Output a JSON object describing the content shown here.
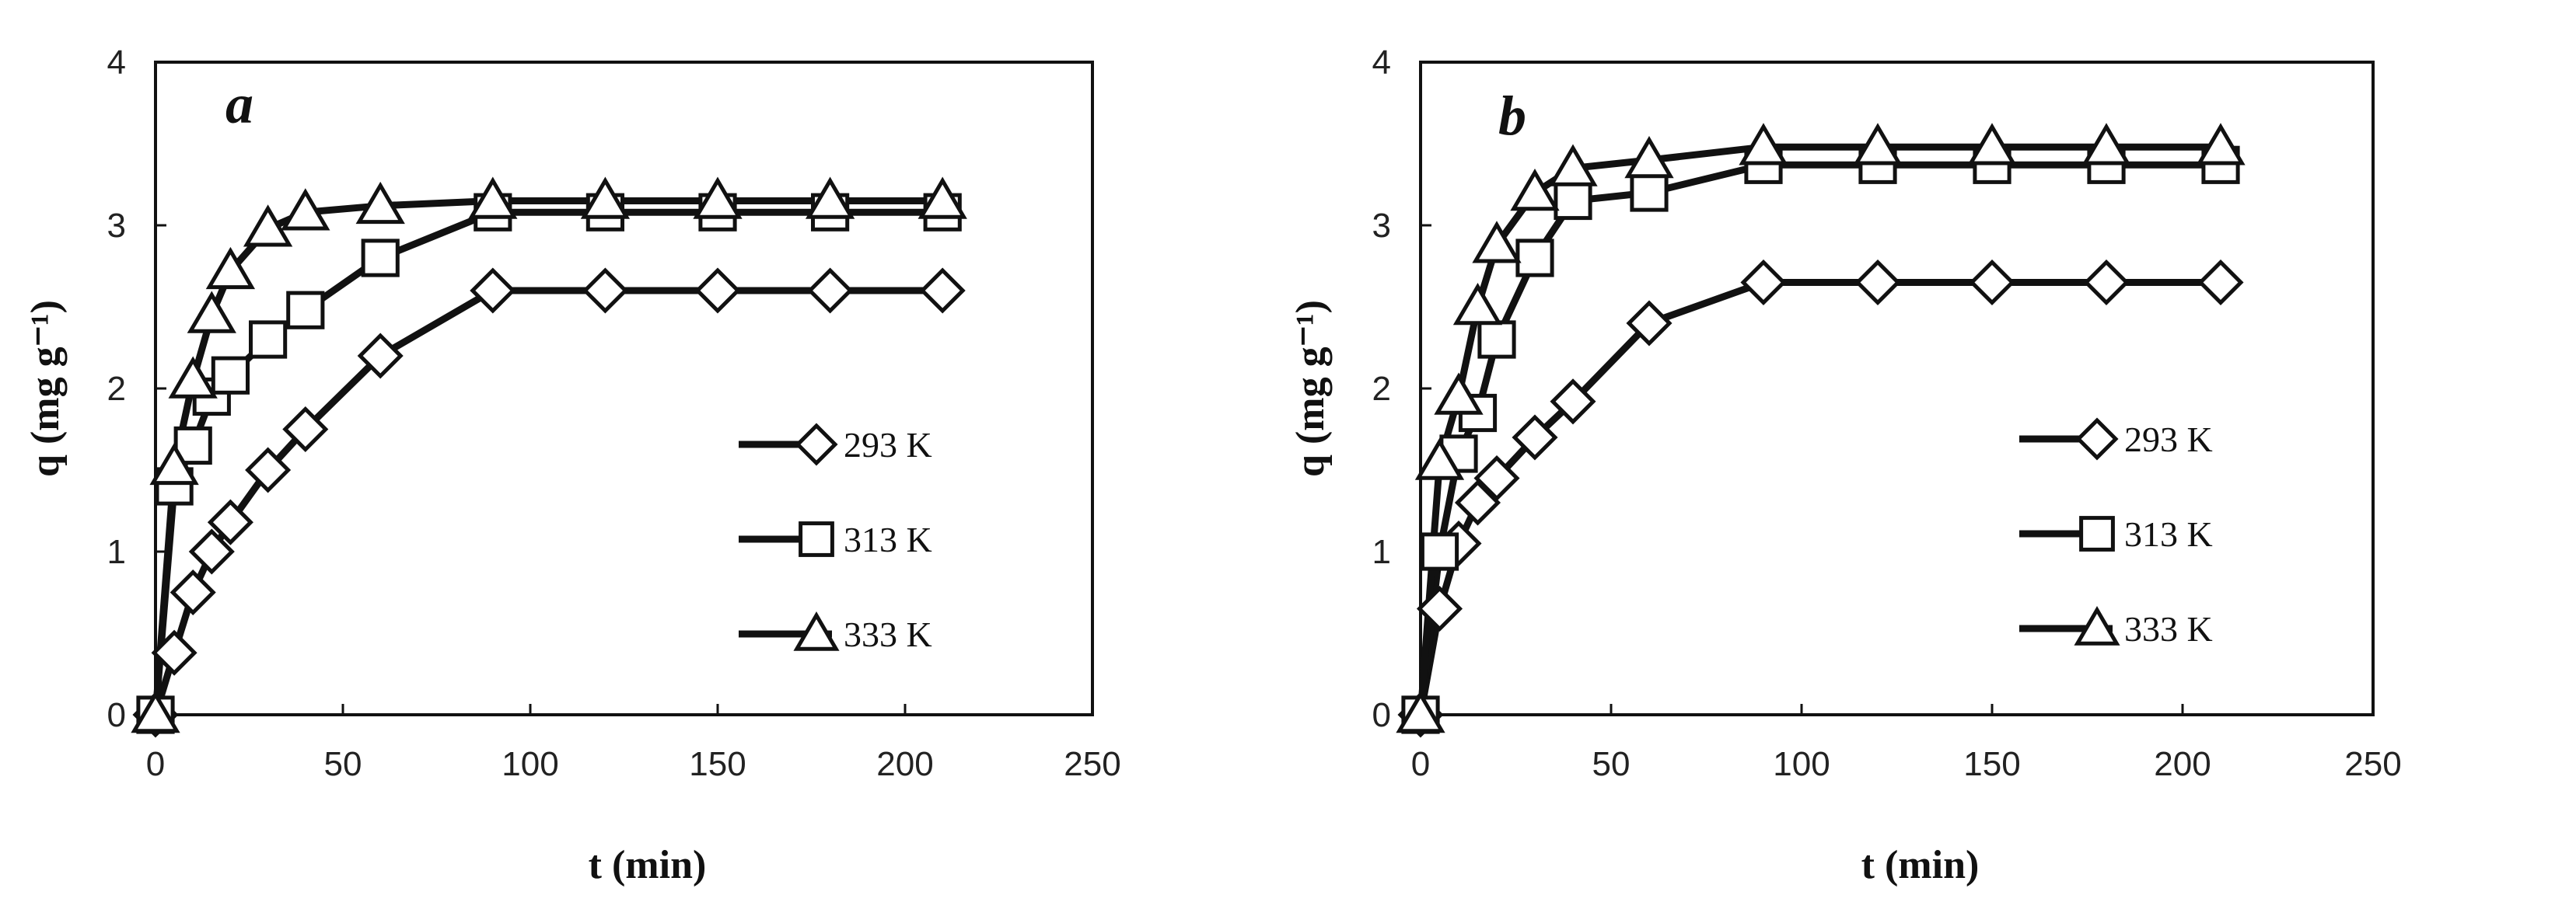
{
  "chart_data": [
    {
      "type": "line",
      "panel_label": "a",
      "xlabel": "t (min)",
      "ylabel": "q (mg g⁻¹)",
      "xlim": [
        0,
        250
      ],
      "ylim": [
        0,
        4
      ],
      "xticks": [
        0,
        50,
        100,
        150,
        200,
        250
      ],
      "yticks": [
        0,
        1,
        2,
        3,
        4
      ],
      "legend_position": "center-right",
      "series": [
        {
          "name": "293 K",
          "marker": "diamond",
          "x": [
            0,
            5,
            10,
            15,
            20,
            30,
            40,
            60,
            90,
            120,
            150,
            180,
            210
          ],
          "y": [
            0,
            0.38,
            0.75,
            1.0,
            1.18,
            1.5,
            1.75,
            2.2,
            2.6,
            2.6,
            2.6,
            2.6,
            2.6
          ]
        },
        {
          "name": "313 K",
          "marker": "square",
          "x": [
            0,
            5,
            10,
            15,
            20,
            30,
            40,
            60,
            90,
            120,
            150,
            180,
            210
          ],
          "y": [
            0,
            1.4,
            1.65,
            1.95,
            2.08,
            2.3,
            2.48,
            2.8,
            3.08,
            3.08,
            3.08,
            3.08,
            3.08
          ]
        },
        {
          "name": "333 K",
          "marker": "triangle",
          "x": [
            0,
            5,
            10,
            15,
            20,
            30,
            40,
            60,
            90,
            120,
            150,
            180,
            210
          ],
          "y": [
            0,
            1.52,
            2.05,
            2.45,
            2.72,
            2.98,
            3.08,
            3.12,
            3.15,
            3.15,
            3.15,
            3.15,
            3.15
          ]
        }
      ]
    },
    {
      "type": "line",
      "panel_label": "b",
      "xlabel": "t (min)",
      "ylabel": "q (mg g⁻¹)",
      "xlim": [
        0,
        250
      ],
      "ylim": [
        0,
        4
      ],
      "xticks": [
        0,
        50,
        100,
        150,
        200,
        250
      ],
      "yticks": [
        0,
        1,
        2,
        3,
        4
      ],
      "legend_position": "center-right",
      "series": [
        {
          "name": "293 K",
          "marker": "diamond",
          "x": [
            0,
            5,
            10,
            15,
            20,
            30,
            40,
            60,
            90,
            120,
            150,
            180,
            210
          ],
          "y": [
            0,
            0.65,
            1.05,
            1.3,
            1.45,
            1.7,
            1.92,
            2.4,
            2.65,
            2.65,
            2.65,
            2.65,
            2.65
          ]
        },
        {
          "name": "313 K",
          "marker": "square",
          "x": [
            0,
            5,
            10,
            15,
            20,
            30,
            40,
            60,
            90,
            120,
            150,
            180,
            210
          ],
          "y": [
            0,
            1.0,
            1.6,
            1.85,
            2.3,
            2.8,
            3.15,
            3.2,
            3.37,
            3.37,
            3.37,
            3.37,
            3.37
          ]
        },
        {
          "name": "333 K",
          "marker": "triangle",
          "x": [
            0,
            5,
            10,
            15,
            20,
            30,
            40,
            60,
            90,
            120,
            150,
            180,
            210
          ],
          "y": [
            0,
            1.55,
            1.95,
            2.5,
            2.88,
            3.2,
            3.35,
            3.4,
            3.48,
            3.48,
            3.48,
            3.48,
            3.48
          ]
        }
      ]
    }
  ]
}
